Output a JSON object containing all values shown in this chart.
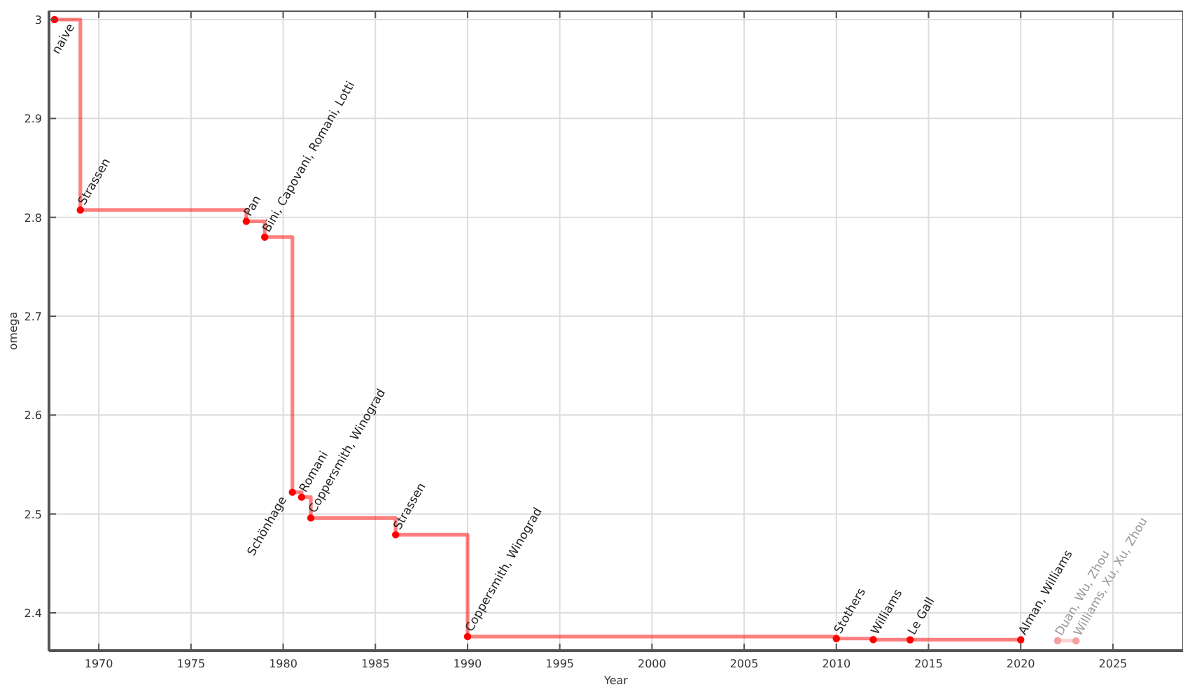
{
  "chart_data": {
    "type": "step",
    "xlabel": "Year",
    "ylabel": "omega",
    "xlim": [
      1967.3,
      2028.8
    ],
    "ylim": [
      2.3618,
      3.0085
    ],
    "xticks": [
      1970,
      1975,
      1980,
      1985,
      1990,
      1995,
      2000,
      2005,
      2010,
      2015,
      2020,
      2025
    ],
    "yticks": [
      2.4,
      2.5,
      2.6,
      2.7,
      2.8,
      2.9,
      {
        "value": 3,
        "label": "3"
      }
    ],
    "grid": true,
    "marker": "circle",
    "line_style": "solid",
    "series": [
      {
        "color": "#ff0000",
        "x": [
          1967.6,
          1969,
          1978,
          1979,
          1980.5,
          1981,
          1981.5,
          1986.1,
          1990,
          2010,
          2012,
          2014,
          2020
        ],
        "values": [
          3,
          2.8074,
          2.796,
          2.78,
          2.522,
          2.517,
          2.496,
          2.479,
          2.376,
          2.374,
          2.3729,
          2.3728,
          2.3728
        ]
      },
      {
        "color": "#f4a0a0",
        "x": [
          2022,
          2023
        ],
        "values": [
          2.3719,
          2.3716
        ]
      }
    ],
    "annotations": [
      {
        "text": "naive",
        "x": 1969,
        "y": 3
      },
      {
        "text": "Strassen",
        "x": 1969,
        "y": 2.8074
      },
      {
        "text": "Pan",
        "x": 1978,
        "y": 2.796
      },
      {
        "text": "Bini, Capovani, Romani, Lotti",
        "x": 1979,
        "y": 2.78
      },
      {
        "text": "Schönhage",
        "x": 1980.5,
        "y": 2.522
      },
      {
        "text": "Romani",
        "x": 1981,
        "y": 2.517
      },
      {
        "text": "Coppersmith, Winograd",
        "x": 1981.5,
        "y": 2.496
      },
      {
        "text": "Strassen",
        "x": 1986.1,
        "y": 2.479
      },
      {
        "text": "Coppersmith, Winograd",
        "x": 1990,
        "y": 2.376
      },
      {
        "text": "Stothers",
        "x": 2010,
        "y": 2.374
      },
      {
        "text": "Williams",
        "x": 2012,
        "y": 2.3729
      },
      {
        "text": "Le Gall",
        "x": 2014,
        "y": 2.3728
      },
      {
        "text": "Alman, Williams",
        "x": 2020,
        "y": 2.3728
      },
      {
        "text": "Duan, Wu, Zhou",
        "x": 2022,
        "y": 2.3719
      },
      {
        "text": "Williams, Xu, Xu, Zhou",
        "x": 2023,
        "y": 2.3716
      }
    ]
  }
}
